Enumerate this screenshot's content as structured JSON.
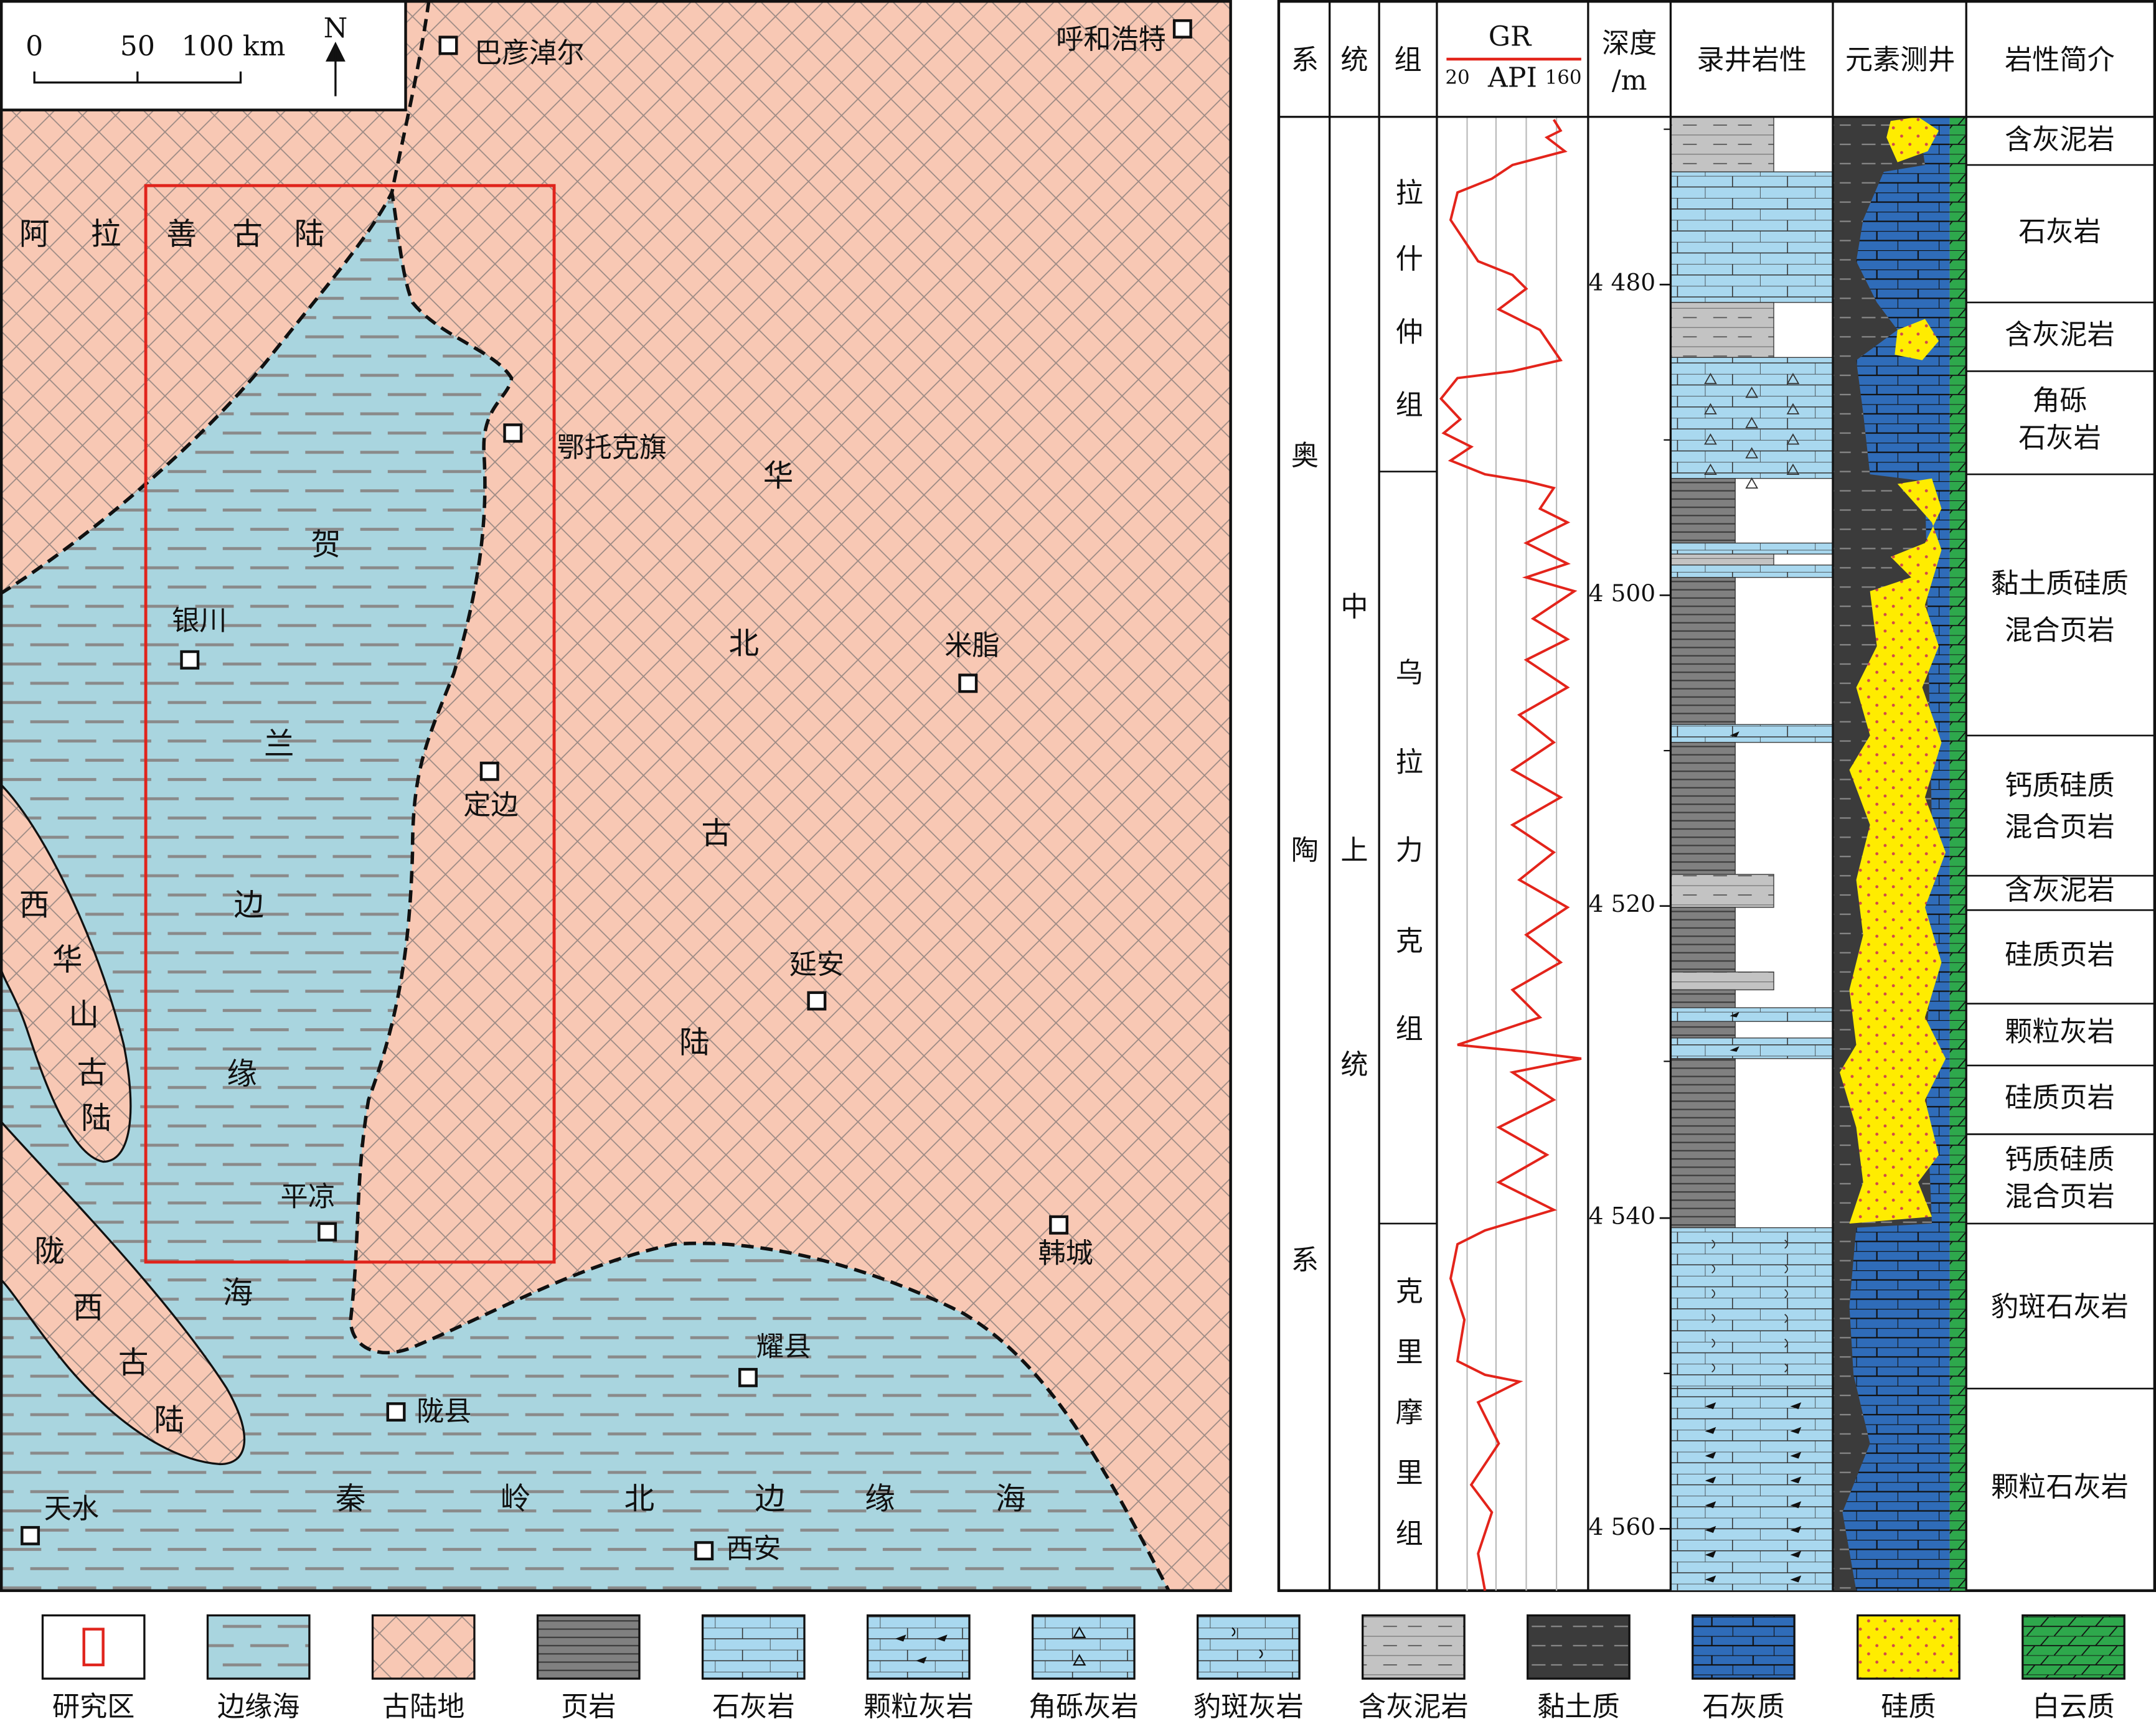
{
  "map": {
    "scale_labels": [
      "0",
      "50",
      "100 km"
    ],
    "north": "N",
    "cities": [
      "巴彦淖尔",
      "呼和浩特",
      "鄂托克旗",
      "银川",
      "米脂",
      "定边",
      "延安",
      "平凉",
      "韩城",
      "耀县",
      "陇县",
      "天水",
      "西安"
    ],
    "regions": [
      "阿拉善古陆",
      "华北古陆",
      "西华山古陆",
      "陇西古陆",
      "贺兰边缘海",
      "秦岭北边缘海"
    ]
  },
  "column": {
    "headers": {
      "system": "系",
      "series": "统",
      "formation": "组",
      "gr": "GR",
      "gr_min": "20",
      "gr_unit": "API",
      "gr_max": "160",
      "depth": [
        "深度",
        "/m"
      ],
      "lithology": "录井岩性",
      "element_log": "元素测井",
      "description": "岩性简介"
    },
    "system": "奥陶系",
    "series": "中上统",
    "formations": [
      "拉什仲组",
      "乌拉力克组",
      "克里摩里组"
    ],
    "depth_ticks": [
      "4 480",
      "4 500",
      "4 520",
      "4 540",
      "4 560"
    ],
    "descriptions": [
      [
        "含灰泥岩"
      ],
      [
        "石灰岩"
      ],
      [
        "含灰泥岩"
      ],
      [
        "角砾",
        "石灰岩"
      ],
      [
        "黏土质硅质",
        "混合页岩"
      ],
      [
        "钙质硅质",
        "混合页岩"
      ],
      [
        "含灰泥岩"
      ],
      [
        "硅质页岩"
      ],
      [
        "颗粒灰岩"
      ],
      [
        "硅质页岩"
      ],
      [
        "钙质硅质",
        "混合页岩"
      ],
      [
        "豹斑石灰岩"
      ],
      [
        "颗粒石灰岩"
      ]
    ]
  },
  "legend": [
    "研究区",
    "边缘海",
    "古陆地",
    "页岩",
    "石灰岩",
    "颗粒灰岩",
    "角砾灰岩",
    "豹斑灰岩",
    "含灰泥岩",
    "黏土质",
    "石灰质",
    "硅质",
    "白云质"
  ]
}
